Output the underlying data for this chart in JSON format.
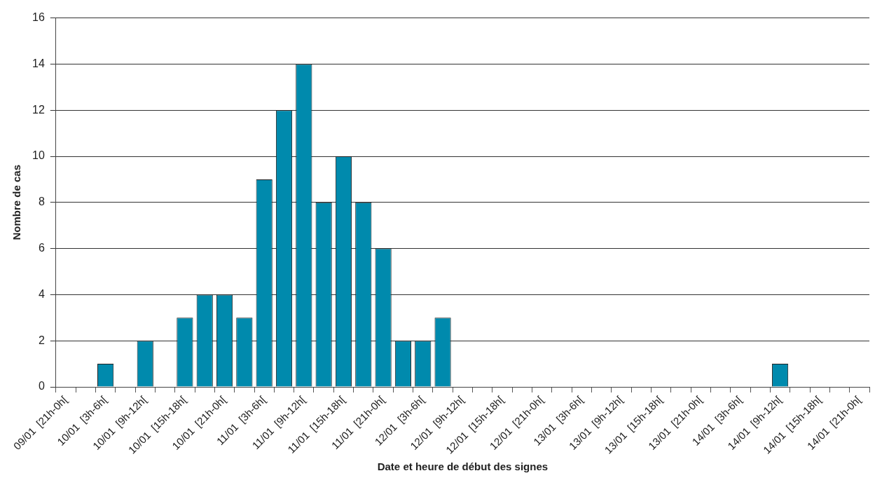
{
  "chart_data": {
    "type": "bar",
    "xlabel": "Date et heure de début des signes",
    "ylabel": "Nombre de cas",
    "categories": [
      "09/01  [21h-0h[",
      null,
      "10/01  [3h-6h[",
      null,
      "10/01  [9h-12h[",
      null,
      "10/01  [15h-18h[",
      null,
      "10/01  [21h-0h[",
      null,
      "11/01  [3h-6h[",
      null,
      "11/01  [9h-12h[",
      null,
      "11/01  [15h-18h[",
      null,
      "11/01  [21h-0h[",
      null,
      "12/01  [3h-6h[",
      null,
      "12/01  [9h-12h[",
      null,
      "12/01  [15h-18h[",
      null,
      "12/01  [21h-0h[",
      null,
      "13/01  [3h-6h[",
      null,
      "13/01  [9h-12h[",
      null,
      "13/01  [15h-18h[",
      null,
      "13/01  [21h-0h[",
      null,
      "14/01  [3h-6h[",
      null,
      "14/01  [9h-12h[",
      null,
      "14/01  [15h-18h[",
      null,
      "14/01  [21h-0h["
    ],
    "values": [
      0,
      0,
      1,
      0,
      2,
      0,
      3,
      4,
      4,
      3,
      9,
      12,
      14,
      8,
      10,
      8,
      6,
      2,
      2,
      3,
      0,
      0,
      0,
      0,
      0,
      0,
      0,
      0,
      0,
      0,
      0,
      0,
      0,
      0,
      0,
      0,
      1,
      0,
      0,
      0,
      0
    ],
    "color": "#008aad",
    "ylim": [
      0,
      16
    ],
    "yticks": [
      0,
      2,
      4,
      6,
      8,
      10,
      12,
      14,
      16
    ],
    "grid": "y"
  }
}
